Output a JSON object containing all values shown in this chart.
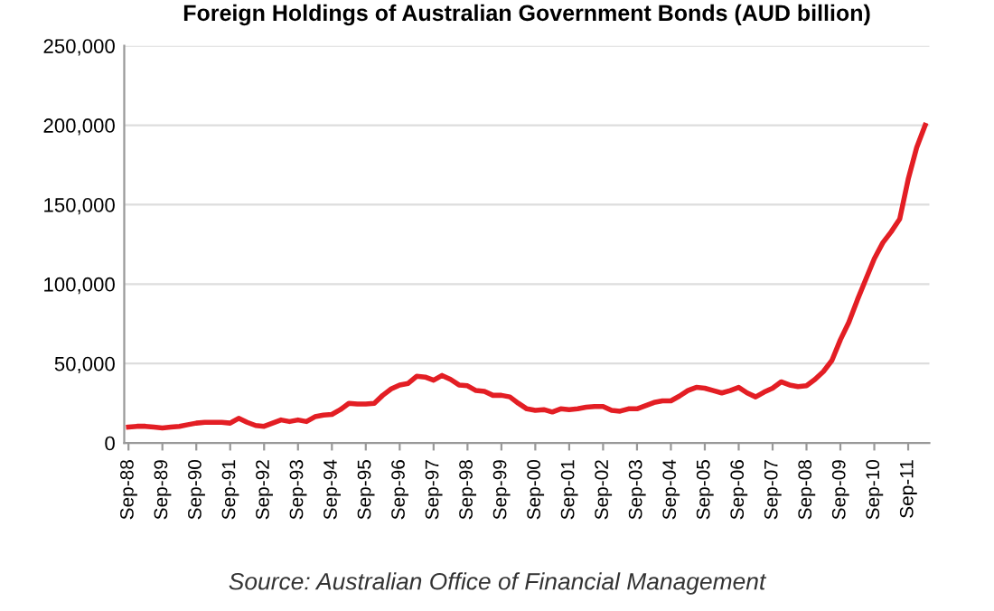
{
  "chart_data": {
    "type": "line",
    "title": "Foreign Holdings of Australian Government Bonds (AUD billion)",
    "categories": [
      "Sep-88",
      null,
      null,
      null,
      "Sep-89",
      null,
      null,
      null,
      "Sep-90",
      null,
      null,
      null,
      "Sep-91",
      null,
      null,
      null,
      "Sep-92",
      null,
      null,
      null,
      "Sep-93",
      null,
      null,
      null,
      "Sep-94",
      null,
      null,
      null,
      "Sep-95",
      null,
      null,
      null,
      "Sep-96",
      null,
      null,
      null,
      "Sep-97",
      null,
      null,
      null,
      "Sep-98",
      null,
      null,
      null,
      "Sep-99",
      null,
      null,
      null,
      "Sep-00",
      null,
      null,
      null,
      "Sep-01",
      null,
      null,
      null,
      "Sep-02",
      null,
      null,
      null,
      "Sep-03",
      null,
      null,
      null,
      "Sep-04",
      null,
      null,
      null,
      "Sep-05",
      null,
      null,
      null,
      "Sep-06",
      null,
      null,
      null,
      "Sep-07",
      null,
      null,
      null,
      "Sep-08",
      null,
      null,
      null,
      "Sep-09",
      null,
      null,
      null,
      "Sep-10",
      null,
      null,
      null,
      "Sep-11",
      null,
      null
    ],
    "series": [
      {
        "color": "#e31e24",
        "values": [
          10000,
          10500,
          10500,
          10000,
          9500,
          10000,
          10500,
          11500,
          12500,
          13000,
          13000,
          13000,
          12500,
          15500,
          13000,
          11000,
          10500,
          12500,
          14500,
          13500,
          14500,
          13500,
          16500,
          17500,
          18000,
          21000,
          25000,
          24500,
          24500,
          25000,
          30000,
          34000,
          36500,
          37500,
          42000,
          41500,
          39500,
          42500,
          40000,
          36500,
          36000,
          33000,
          32500,
          30000,
          30000,
          29000,
          25000,
          21500,
          20500,
          21000,
          19500,
          21500,
          21000,
          21500,
          22500,
          23000,
          23000,
          20500,
          20000,
          21500,
          21500,
          23500,
          25500,
          26500,
          26500,
          29500,
          33000,
          35000,
          34500,
          33000,
          31500,
          33000,
          35000,
          31500,
          29000,
          32000,
          34500,
          38500,
          36500,
          35500,
          36000,
          40000,
          45000,
          52000,
          65000,
          76000,
          90000,
          103000,
          116000,
          126000,
          133000,
          141000,
          166000,
          186000,
          200000
        ]
      }
    ],
    "ylim": [
      0,
      250000
    ],
    "yticks": [
      {
        "value": 0,
        "label": "0"
      },
      {
        "value": 50000,
        "label": "50,000"
      },
      {
        "value": 100000,
        "label": "100,000"
      },
      {
        "value": 150000,
        "label": "150,000"
      },
      {
        "value": 200000,
        "label": "200,000"
      },
      {
        "value": 250000,
        "label": "250,000"
      }
    ],
    "grid": "y",
    "line_style": "solid",
    "marker": "none",
    "annotations": [
      "Source: Australian Office of Financial Management"
    ]
  }
}
